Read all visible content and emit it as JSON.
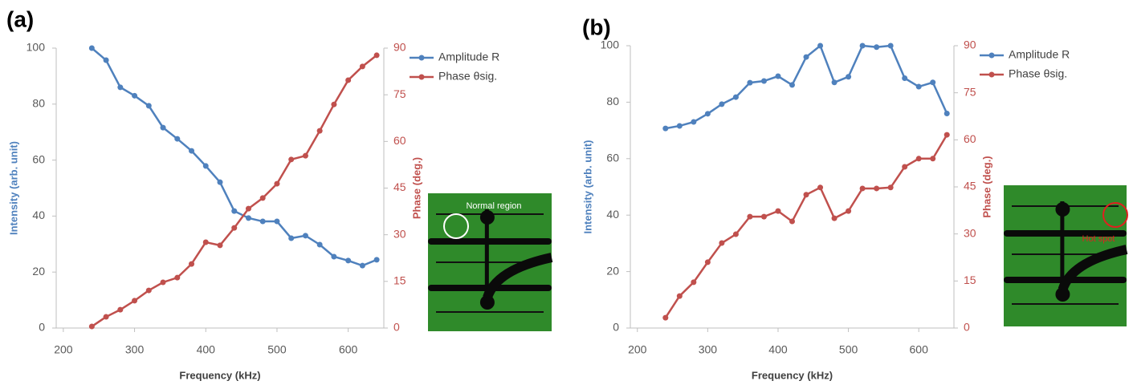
{
  "chart_data": [
    {
      "type": "line",
      "panel_label": "(a)",
      "annotation": "Normal region",
      "annotation_color": "#ffffff",
      "x_label": "Frequency (kHz)",
      "y_label": "Intensity (arb. unit)",
      "y2_label": "Phase (deg.)",
      "x": [
        240,
        260,
        280,
        300,
        320,
        340,
        360,
        380,
        400,
        420,
        440,
        460,
        480,
        500,
        520,
        540,
        560,
        580,
        600,
        620,
        640
      ],
      "xlim": [
        190,
        650
      ],
      "xticks": [
        200,
        300,
        400,
        500,
        600
      ],
      "ylim": [
        0,
        100
      ],
      "yticks": [
        0,
        20,
        40,
        60,
        80,
        100
      ],
      "y2lim": [
        0,
        90
      ],
      "y2ticks": [
        0,
        15,
        30,
        45,
        60,
        75,
        90
      ],
      "legend": "right",
      "series": [
        {
          "name": "Amplitude R",
          "color": "#4f81bd",
          "values": [
            100,
            95.7,
            86,
            83,
            79.4,
            71.6,
            67.6,
            63.3,
            57.9,
            52.1,
            41.8,
            39.3,
            38.1,
            38.1,
            32.1,
            33,
            29.8,
            25.5,
            24.1,
            22.3,
            24.4
          ]
        },
        {
          "name": "Phase θsig.",
          "color": "#c0504d",
          "axis": "y2",
          "values": [
            0.5,
            3.6,
            5.9,
            8.8,
            12.1,
            14.7,
            16.2,
            20.6,
            27.6,
            26.6,
            32.2,
            38.4,
            41.8,
            46.4,
            54.2,
            55.4,
            63.4,
            71.9,
            79.7,
            84.1,
            87.7
          ]
        }
      ]
    },
    {
      "type": "line",
      "panel_label": "(b)",
      "annotation": "Hot spot",
      "annotation_color": "#e02020",
      "x_label": "Frequency (kHz)",
      "y_label": "Intensity (arb. unit)",
      "y2_label": "Phase (deg.)",
      "x": [
        240,
        260,
        280,
        300,
        320,
        340,
        360,
        380,
        400,
        420,
        440,
        460,
        480,
        500,
        520,
        540,
        560,
        580,
        600,
        620,
        640
      ],
      "xlim": [
        190,
        650
      ],
      "xticks": [
        200,
        300,
        400,
        500,
        600
      ],
      "ylim": [
        0,
        100
      ],
      "yticks": [
        0,
        20,
        40,
        60,
        80,
        100
      ],
      "y2lim": [
        0,
        90
      ],
      "y2ticks": [
        0,
        15,
        30,
        45,
        60,
        75,
        90
      ],
      "legend": "right",
      "series": [
        {
          "name": "Amplitude R",
          "color": "#4f81bd",
          "values": [
            70.7,
            71.6,
            73,
            75.9,
            79.3,
            81.8,
            86.9,
            87.5,
            89.2,
            86.1,
            96,
            100,
            87,
            89,
            100,
            99.5,
            100,
            88.5,
            85.5,
            87,
            76
          ]
        },
        {
          "name": "Phase θsig.",
          "color": "#c0504d",
          "axis": "y2",
          "values": [
            3.3,
            10.2,
            14.6,
            21,
            27.1,
            29.9,
            35.5,
            35.5,
            37.3,
            34,
            42.5,
            44.8,
            35,
            37.3,
            44.5,
            44.5,
            44.8,
            51.4,
            54,
            54,
            61.6
          ]
        }
      ]
    }
  ]
}
